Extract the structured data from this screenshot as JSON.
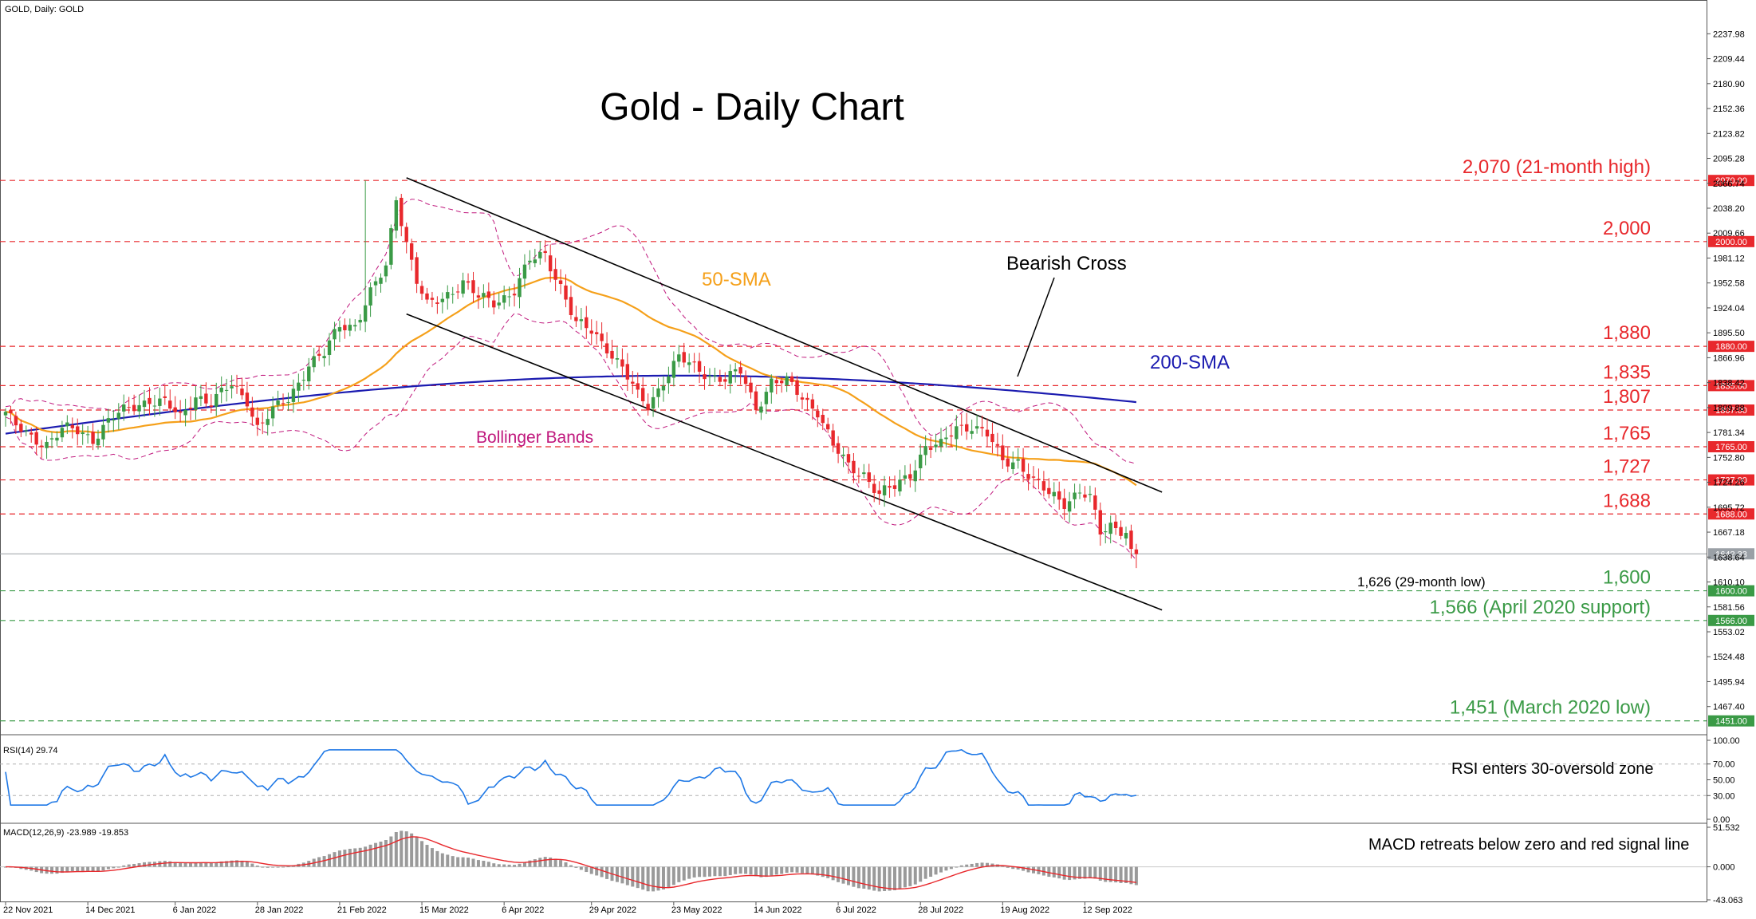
{
  "header": {
    "symbol_label": "GOLD, Daily:  GOLD"
  },
  "chart_data": [
    {
      "type": "candlestick",
      "title": "Gold - Daily Chart",
      "symbol": "GOLD",
      "timeframe": "Daily",
      "ylim": [
        1441,
        2252
      ],
      "y_ticks": [
        "2237.98",
        "2209.44",
        "2180.90",
        "2152.36",
        "2123.82",
        "2095.28",
        "2066.74",
        "2038.20",
        "2009.66",
        "1981.12",
        "1952.58",
        "1924.04",
        "1895.50",
        "1866.96",
        "1838.42",
        "1809.88",
        "1781.34",
        "1752.80",
        "1724.26",
        "1695.72",
        "1667.18",
        "1638.64",
        "1610.10",
        "1581.56",
        "1553.02",
        "1524.48",
        "1495.94",
        "1467.40"
      ],
      "x_ticks": [
        "22 Nov 2021",
        "14 Dec 2021",
        "6 Jan 2022",
        "28 Jan 2022",
        "21 Feb 2022",
        "15 Mar 2022",
        "6 Apr 2022",
        "29 Apr 2022",
        "23 May 2022",
        "14 Jun 2022",
        "6 Jul 2022",
        "28 Jul 2022",
        "19 Aug 2022",
        "12 Sep 2022"
      ],
      "close_anchors": [
        [
          "22 Nov 2021",
          1805
        ],
        [
          "24 Nov 2021",
          1787
        ],
        [
          "29 Nov 2021",
          1775
        ],
        [
          "2 Dec 2021",
          1770
        ],
        [
          "7 Dec 2021",
          1785
        ],
        [
          "10 Dec 2021",
          1782
        ],
        [
          "15 Dec 2021",
          1775
        ],
        [
          "20 Dec 2021",
          1795
        ],
        [
          "24 Dec 2021",
          1808
        ],
        [
          "30 Dec 2021",
          1820
        ],
        [
          "4 Jan 2022",
          1815
        ],
        [
          "7 Jan 2022",
          1797
        ],
        [
          "12 Jan 2022",
          1825
        ],
        [
          "17 Jan 2022",
          1815
        ],
        [
          "21 Jan 2022",
          1835
        ],
        [
          "26 Jan 2022",
          1820
        ],
        [
          "28 Jan 2022",
          1787
        ],
        [
          "2 Feb 2022",
          1805
        ],
        [
          "7 Feb 2022",
          1820
        ],
        [
          "11 Feb 2022",
          1860
        ],
        [
          "16 Feb 2022",
          1870
        ],
        [
          "21 Feb 2022",
          1905
        ],
        [
          "24 Feb 2022",
          1905
        ],
        [
          "1 Mar 2022",
          1940
        ],
        [
          "4 Mar 2022",
          1970
        ],
        [
          "8 Mar 2022",
          2052
        ],
        [
          "10 Mar 2022",
          2000
        ],
        [
          "14 Mar 2022",
          1955
        ],
        [
          "16 Mar 2022",
          1925
        ],
        [
          "21 Mar 2022",
          1935
        ],
        [
          "25 Mar 2022",
          1955
        ],
        [
          "30 Mar 2022",
          1935
        ],
        [
          "4 Apr 2022",
          1930
        ],
        [
          "8 Apr 2022",
          1945
        ],
        [
          "13 Apr 2022",
          1977
        ],
        [
          "18 Apr 2022",
          1985
        ],
        [
          "21 Apr 2022",
          1950
        ],
        [
          "26 Apr 2022",
          1905
        ],
        [
          "29 Apr 2022",
          1897
        ],
        [
          "4 May 2022",
          1880
        ],
        [
          "9 May 2022",
          1855
        ],
        [
          "12 May 2022",
          1822
        ],
        [
          "16 May 2022",
          1812
        ],
        [
          "19 May 2022",
          1842
        ],
        [
          "24 May 2022",
          1866
        ],
        [
          "27 May 2022",
          1855
        ],
        [
          "1 Jun 2022",
          1848
        ],
        [
          "6 Jun 2022",
          1842
        ],
        [
          "9 Jun 2022",
          1850
        ],
        [
          "14 Jun 2022",
          1810
        ],
        [
          "17 Jun 2022",
          1840
        ],
        [
          "22 Jun 2022",
          1838
        ],
        [
          "27 Jun 2022",
          1822
        ],
        [
          "30 Jun 2022",
          1807
        ],
        [
          "5 Jul 2022",
          1765
        ],
        [
          "8 Jul 2022",
          1742
        ],
        [
          "13 Jul 2022",
          1735
        ],
        [
          "18 Jul 2022",
          1710
        ],
        [
          "21 Jul 2022",
          1718
        ],
        [
          "26 Jul 2022",
          1735
        ],
        [
          "29 Jul 2022",
          1765
        ],
        [
          "3 Aug 2022",
          1765
        ],
        [
          "8 Aug 2022",
          1788
        ],
        [
          "11 Aug 2022",
          1790
        ],
        [
          "16 Aug 2022",
          1778
        ],
        [
          "19 Aug 2022",
          1748
        ],
        [
          "24 Aug 2022",
          1750
        ],
        [
          "29 Aug 2022",
          1725
        ],
        [
          "1 Sep 2022",
          1710
        ],
        [
          "6 Sep 2022",
          1702
        ],
        [
          "9 Sep 2022",
          1715
        ],
        [
          "13 Sep 2022",
          1705
        ],
        [
          "15 Sep 2022",
          1665
        ],
        [
          "19 Sep 2022",
          1675
        ],
        [
          "22 Sep 2022",
          1670
        ],
        [
          "23 Sep 2022",
          1644
        ],
        [
          "26 Sep 2022",
          1642
        ]
      ],
      "last_price": "1642.33",
      "series": [
        {
          "name": "50-SMA",
          "color": "#f5a01a"
        },
        {
          "name": "200-SMA",
          "color": "#1b1bb0"
        },
        {
          "name": "Bollinger Bands",
          "color": "#c0187d"
        }
      ],
      "levels": [
        {
          "value": 2070,
          "label": "2,070 (21-month high)",
          "badge": "2070.00",
          "color": "#e8282c"
        },
        {
          "value": 2000,
          "label": "2,000",
          "badge": "2000.00",
          "color": "#e8282c"
        },
        {
          "value": 1880,
          "label": "1,880",
          "badge": "1880.00",
          "color": "#e8282c"
        },
        {
          "value": 1835,
          "label": "1,835",
          "badge": "1835.00",
          "color": "#e8282c"
        },
        {
          "value": 1807,
          "label": "1,807",
          "badge": "1807.00",
          "color": "#e8282c"
        },
        {
          "value": 1765,
          "label": "1,765",
          "badge": "1765.00",
          "color": "#e8282c"
        },
        {
          "value": 1727,
          "label": "1,727",
          "badge": "1727.00",
          "color": "#e8282c"
        },
        {
          "value": 1688,
          "label": "1,688",
          "badge": "1688.00",
          "color": "#e8282c"
        },
        {
          "value": 1600,
          "label": "1,600",
          "badge": "1600.00",
          "color": "#3a9a46"
        },
        {
          "value": 1566,
          "label": "1,566 (April 2020 support)",
          "badge": "1566.00",
          "color": "#3a9a46"
        },
        {
          "value": 1451,
          "label": "1,451 (March 2020 low)",
          "badge": "1451.00",
          "color": "#3a9a46"
        }
      ],
      "annotations": {
        "bearish_cross": "Bearish Cross",
        "low_label": "1,626 (29-month low)",
        "sma50_label": "50-SMA",
        "sma200_label": "200-SMA",
        "bollinger_label": "Bollinger Bands"
      },
      "channel": {
        "upper": [
          [
            "10 Mar 2022",
            2073
          ],
          [
            "3 Oct 2022",
            1713
          ]
        ],
        "lower": [
          [
            "10 Mar 2022",
            1917
          ],
          [
            "3 Oct 2022",
            1578
          ]
        ]
      }
    },
    {
      "type": "line",
      "title": "RSI(14) 29.74",
      "ylim": [
        0,
        100
      ],
      "y_ticks": [
        "100.00",
        "70.00",
        "50.00",
        "30.00",
        "0.00"
      ],
      "annotation": "RSI enters 30-oversold zone",
      "color": "#1e78e6"
    },
    {
      "type": "bar",
      "title": "MACD(12,26,9) -23.989 -19.853",
      "ylim": [
        -43.063,
        51.532
      ],
      "y_ticks": [
        "51.532",
        "0.000",
        "-43.063"
      ],
      "annotation": "MACD retreats below zero and red signal line",
      "histogram_color": "#9a9a9a",
      "signal_color": "#e8282c"
    }
  ]
}
